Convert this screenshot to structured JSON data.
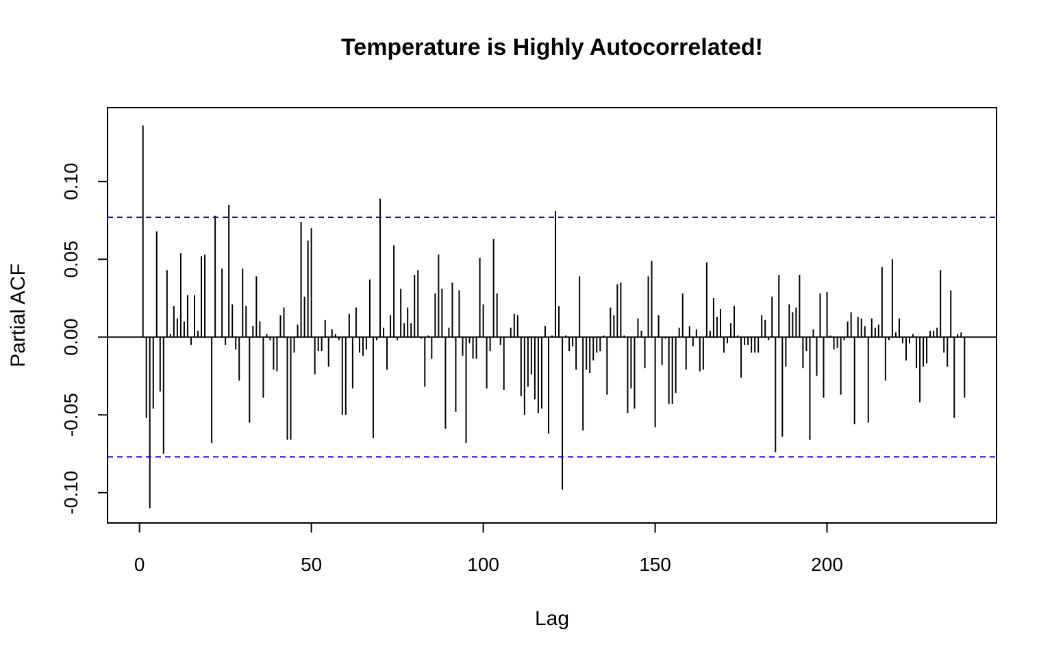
{
  "chart_data": {
    "type": "bar",
    "subtype": "pacf",
    "title": "Temperature is Highly Autocorrelated!",
    "xlabel": "Lag",
    "ylabel": "Partial ACF",
    "xlim": [
      -9.3,
      249.3
    ],
    "ylim": [
      -0.1195,
      0.1475
    ],
    "x_ticks": [
      0,
      50,
      100,
      150,
      200
    ],
    "x_tick_labels": [
      "0",
      "50",
      "100",
      "150",
      "200"
    ],
    "y_ticks": [
      -0.1,
      -0.05,
      0.0,
      0.05,
      0.1
    ],
    "y_tick_labels": [
      "-0.10",
      "-0.05",
      "0.00",
      "0.05",
      "0.10"
    ],
    "confidence_limit": 0.077,
    "zero_line": 0,
    "colors": {
      "bars": "#000000",
      "confidence": "#0000ff",
      "axes": "#000000"
    },
    "lags": [
      1,
      2,
      3,
      4,
      5,
      6,
      7,
      8,
      9,
      10,
      11,
      12,
      13,
      14,
      15,
      16,
      17,
      18,
      19,
      20,
      21,
      22,
      23,
      24,
      25,
      26,
      27,
      28,
      29,
      30,
      31,
      32,
      33,
      34,
      35,
      36,
      37,
      38,
      39,
      40,
      41,
      42,
      43,
      44,
      45,
      46,
      47,
      48,
      49,
      50,
      51,
      52,
      53,
      54,
      55,
      56,
      57,
      58,
      59,
      60,
      61,
      62,
      63,
      64,
      65,
      66,
      67,
      68,
      69,
      70,
      71,
      72,
      73,
      74,
      75,
      76,
      77,
      78,
      79,
      80,
      81,
      82,
      83,
      84,
      85,
      86,
      87,
      88,
      89,
      90,
      91,
      92,
      93,
      94,
      95,
      96,
      97,
      98,
      99,
      100,
      101,
      102,
      103,
      104,
      105,
      106,
      107,
      108,
      109,
      110,
      111,
      112,
      113,
      114,
      115,
      116,
      117,
      118,
      119,
      120,
      121,
      122,
      123,
      124,
      125,
      126,
      127,
      128,
      129,
      130,
      131,
      132,
      133,
      134,
      135,
      136,
      137,
      138,
      139,
      140,
      141,
      142,
      143,
      144,
      145,
      146,
      147,
      148,
      149,
      150,
      151,
      152,
      153,
      154,
      155,
      156,
      157,
      158,
      159,
      160,
      161,
      162,
      163,
      164,
      165,
      166,
      167,
      168,
      169,
      170,
      171,
      172,
      173,
      174,
      175,
      176,
      177,
      178,
      179,
      180,
      181,
      182,
      183,
      184,
      185,
      186,
      187,
      188,
      189,
      190,
      191,
      192,
      193,
      194,
      195,
      196,
      197,
      198,
      199,
      200,
      201,
      202,
      203,
      204,
      205,
      206,
      207,
      208,
      209,
      210,
      211,
      212,
      213,
      214,
      215,
      216,
      217,
      218,
      219,
      220,
      221,
      222,
      223,
      224,
      225,
      226,
      227,
      228,
      229,
      230,
      231,
      232,
      233,
      234,
      235,
      236,
      237,
      238,
      239,
      240
    ],
    "values": [
      0.136,
      -0.052,
      -0.11,
      -0.046,
      0.068,
      -0.035,
      -0.075,
      0.043,
      0.002,
      0.02,
      0.012,
      0.054,
      0.01,
      0.027,
      -0.005,
      0.027,
      0.004,
      0.052,
      0.053,
      0.0,
      -0.068,
      0.078,
      0.0,
      0.044,
      -0.005,
      0.085,
      0.021,
      -0.008,
      -0.028,
      0.044,
      0.02,
      -0.055,
      0.007,
      0.039,
      0.01,
      -0.039,
      0.002,
      -0.002,
      -0.021,
      -0.022,
      0.014,
      0.019,
      -0.066,
      -0.066,
      -0.01,
      0.008,
      0.074,
      0.026,
      0.062,
      0.07,
      -0.024,
      -0.009,
      -0.009,
      0.011,
      -0.019,
      0.005,
      0.002,
      -0.002,
      -0.05,
      -0.05,
      0.015,
      -0.033,
      0.019,
      -0.01,
      -0.012,
      -0.008,
      0.037,
      -0.065,
      -0.002,
      0.089,
      0.006,
      -0.021,
      0.014,
      0.059,
      -0.002,
      0.031,
      0.009,
      0.019,
      0.009,
      0.04,
      0.043,
      -0.001,
      -0.032,
      0.001,
      -0.014,
      0.028,
      0.053,
      0.031,
      -0.059,
      0.006,
      0.035,
      -0.048,
      0.03,
      -0.012,
      -0.068,
      -0.004,
      -0.014,
      -0.014,
      0.051,
      0.021,
      -0.033,
      -0.009,
      0.063,
      0.028,
      -0.005,
      -0.034,
      0.0,
      0.006,
      0.015,
      0.014,
      -0.038,
      -0.05,
      -0.032,
      -0.024,
      -0.04,
      -0.049,
      -0.046,
      0.007,
      -0.062,
      0.001,
      0.081,
      0.02,
      -0.098,
      0.001,
      -0.009,
      -0.006,
      -0.021,
      0.039,
      -0.06,
      -0.021,
      -0.023,
      -0.015,
      -0.01,
      -0.009,
      0.001,
      -0.037,
      0.019,
      0.014,
      0.034,
      0.035,
      0.001,
      -0.049,
      -0.033,
      -0.046,
      0.012,
      0.004,
      -0.02,
      0.039,
      0.049,
      -0.058,
      0.014,
      -0.018,
      -0.001,
      -0.043,
      -0.043,
      -0.036,
      0.006,
      0.028,
      -0.021,
      0.007,
      -0.006,
      0.005,
      -0.022,
      -0.021,
      0.048,
      0.004,
      0.025,
      0.013,
      0.018,
      -0.01,
      -0.004,
      0.009,
      0.02,
      0.001,
      -0.026,
      -0.005,
      -0.005,
      -0.01,
      -0.01,
      -0.01,
      0.014,
      0.011,
      -0.002,
      0.026,
      -0.074,
      0.04,
      -0.064,
      -0.019,
      0.021,
      0.016,
      0.019,
      0.04,
      -0.02,
      -0.009,
      -0.066,
      0.005,
      -0.025,
      0.028,
      -0.039,
      0.029,
      0.001,
      -0.008,
      -0.007,
      -0.037,
      -0.002,
      0.01,
      0.016,
      -0.056,
      0.013,
      0.012,
      0.007,
      -0.055,
      0.012,
      0.006,
      0.008,
      0.045,
      -0.028,
      -0.002,
      0.05,
      0.003,
      0.012,
      -0.004,
      -0.015,
      -0.004,
      0.002,
      -0.02,
      -0.042,
      -0.019,
      -0.017,
      0.004,
      0.004,
      0.006,
      0.043,
      -0.01,
      -0.019,
      0.03,
      -0.052,
      0.002,
      0.003,
      -0.039,
      0.016
    ]
  }
}
